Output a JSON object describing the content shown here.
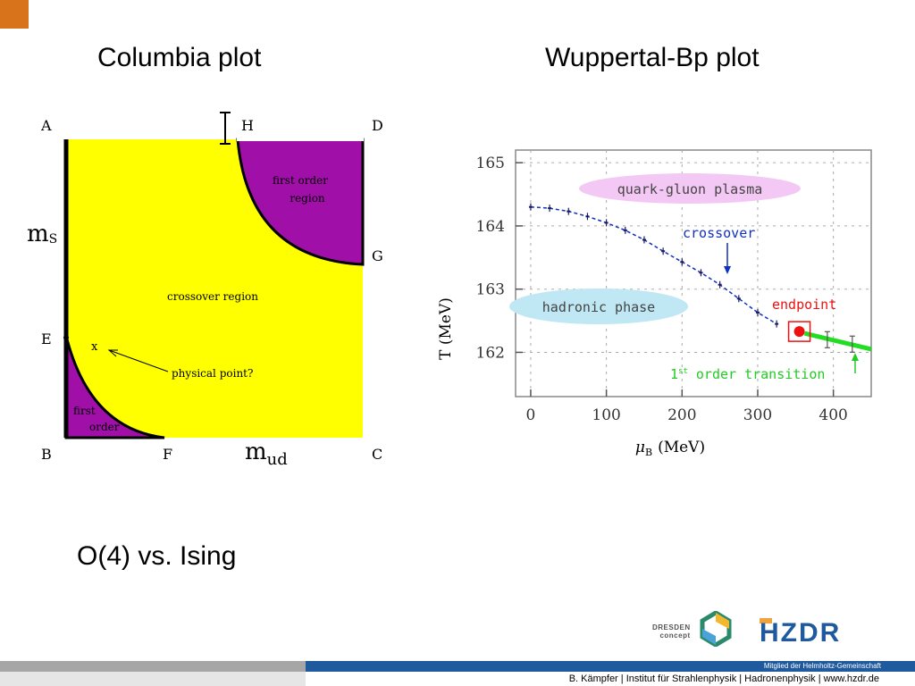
{
  "slide": {
    "title_left": "Columbia plot",
    "title_right": "Wuppertal-Bp plot",
    "subtitle": "O(4) vs. Ising"
  },
  "columbia": {
    "corners": {
      "A": "A",
      "B": "B",
      "C": "C",
      "D": "D",
      "E": "E",
      "F": "F",
      "G": "G",
      "H": "H"
    },
    "axis_ms_main": "m",
    "axis_ms_sub": "S",
    "axis_mud_main": "m",
    "axis_mud_sub": "ud",
    "region_first_order_top_line1": "first order",
    "region_first_order_top_line2": "region",
    "region_crossover": "crossover region",
    "region_first_order_bottom_line1": "first",
    "region_first_order_bottom_line2": "order",
    "physical_point_marker": "x",
    "physical_point_label": "physical point?",
    "colors": {
      "yellow": "#ffff00",
      "purple": "#a010a8"
    }
  },
  "chart_data": {
    "type": "line",
    "title": "",
    "xlabel_symbol": "μ",
    "xlabel_sub": "B",
    "xlabel_unit": "(MeV)",
    "ylabel": "T (MeV)",
    "xlim": [
      -20,
      450
    ],
    "ylim": [
      161.3,
      165.2
    ],
    "xticks": [
      0,
      100,
      200,
      300,
      400
    ],
    "yticks": [
      162,
      163,
      164,
      165
    ],
    "series": [
      {
        "name": "crossover",
        "color": "#1030c0",
        "x": [
          0,
          25,
          50,
          75,
          100,
          125,
          150,
          175,
          200,
          225,
          250,
          275,
          300,
          325
        ],
        "y": [
          164.3,
          164.28,
          164.23,
          164.15,
          164.05,
          163.93,
          163.78,
          163.6,
          163.43,
          163.26,
          163.07,
          162.85,
          162.63,
          162.45
        ]
      },
      {
        "name": "1st order transition",
        "color": "#22dd22",
        "x": [
          362,
          450
        ],
        "y": [
          162.3,
          162.05
        ]
      }
    ],
    "endpoint": {
      "x": 355,
      "y": 162.33,
      "label": "endpoint",
      "color": "#ee1111"
    },
    "annotations": {
      "qgp": "quark-gluon plasma",
      "hadronic": "hadronic phase",
      "crossover": "crossover",
      "first_order_main": "1",
      "first_order_sup": "st",
      "first_order_rest": " order transition"
    }
  },
  "footer": {
    "helmholtz": "Mitglied der Helmholtz-Gemeinschaft",
    "credit": "B. Kämpfer | Institut für Strahlenphysik | Hadronenphysik | www.hzdr.de",
    "dresden_line1": "DRESDEN",
    "dresden_line2": "concept",
    "hzdr_logo": "HZDR"
  }
}
